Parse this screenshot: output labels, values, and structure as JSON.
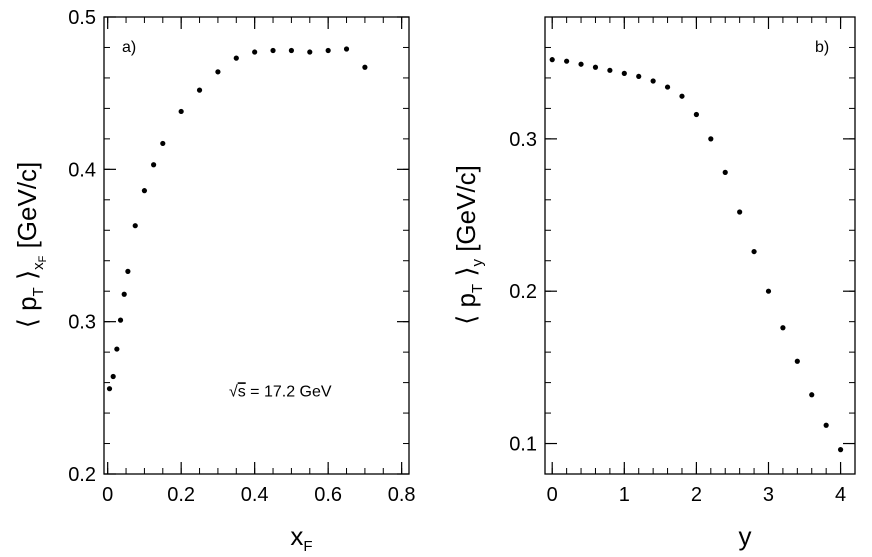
{
  "chart_data": [
    {
      "type": "scatter",
      "panel_label": "a)",
      "xlabel": {
        "main": "x",
        "sub": "F"
      },
      "ylabel": {
        "open": "⟨ p",
        "p_sub": "T",
        "close": "⟩",
        "close_sub": "x",
        "close_subsub": "F",
        "unit": "[GeV/c]"
      },
      "xlim": [
        -0.01,
        0.82
      ],
      "ylim": [
        0.2,
        0.5
      ],
      "xticks": [
        0,
        0.2,
        0.4,
        0.6,
        0.8
      ],
      "xtick_labels": [
        "0",
        "0.2",
        "0.4",
        "0.6",
        "0.8"
      ],
      "yticks": [
        0.2,
        0.3,
        0.4,
        0.5
      ],
      "ytick_labels": [
        "0.2",
        "0.3",
        "0.4",
        "0.5"
      ],
      "xminor": 0.05,
      "yminor": 0.02,
      "annotation": {
        "sqrt": "√",
        "s": "s",
        "rest": " = 17.2 GeV",
        "x": 0.33,
        "y": 0.251
      },
      "points": {
        "x": [
          0.005,
          0.015,
          0.025,
          0.035,
          0.045,
          0.055,
          0.075,
          0.1,
          0.125,
          0.15,
          0.2,
          0.25,
          0.3,
          0.35,
          0.4,
          0.45,
          0.5,
          0.55,
          0.6,
          0.65,
          0.7
        ],
        "y": [
          0.256,
          0.264,
          0.282,
          0.301,
          0.318,
          0.333,
          0.363,
          0.386,
          0.403,
          0.417,
          0.438,
          0.452,
          0.464,
          0.473,
          0.477,
          0.478,
          0.478,
          0.477,
          0.478,
          0.479,
          0.467
        ]
      }
    },
    {
      "type": "scatter",
      "panel_label": "b)",
      "xlabel": {
        "main": "y"
      },
      "ylabel": {
        "open": "⟨ p",
        "p_sub": "T",
        "close": "⟩",
        "close_sub": "y",
        "unit": "[GeV/c]"
      },
      "xlim": [
        -0.1,
        4.2
      ],
      "ylim": [
        0.08,
        0.38
      ],
      "xticks": [
        0,
        1,
        2,
        3,
        4
      ],
      "xtick_labels": [
        "0",
        "1",
        "2",
        "3",
        "4"
      ],
      "yticks": [
        0.1,
        0.2,
        0.3
      ],
      "ytick_labels": [
        "0.1",
        "0.2",
        "0.3"
      ],
      "xminor": 0.2,
      "yminor": 0.02,
      "points": {
        "x": [
          0,
          0.2,
          0.4,
          0.6,
          0.8,
          1.0,
          1.2,
          1.4,
          1.6,
          1.8,
          2.0,
          2.2,
          2.4,
          2.6,
          2.8,
          3.0,
          3.2,
          3.4,
          3.6,
          3.8,
          4.0
        ],
        "y": [
          0.352,
          0.351,
          0.349,
          0.347,
          0.345,
          0.343,
          0.341,
          0.338,
          0.334,
          0.328,
          0.316,
          0.3,
          0.278,
          0.252,
          0.226,
          0.2,
          0.176,
          0.154,
          0.132,
          0.112,
          0.096
        ]
      }
    }
  ]
}
